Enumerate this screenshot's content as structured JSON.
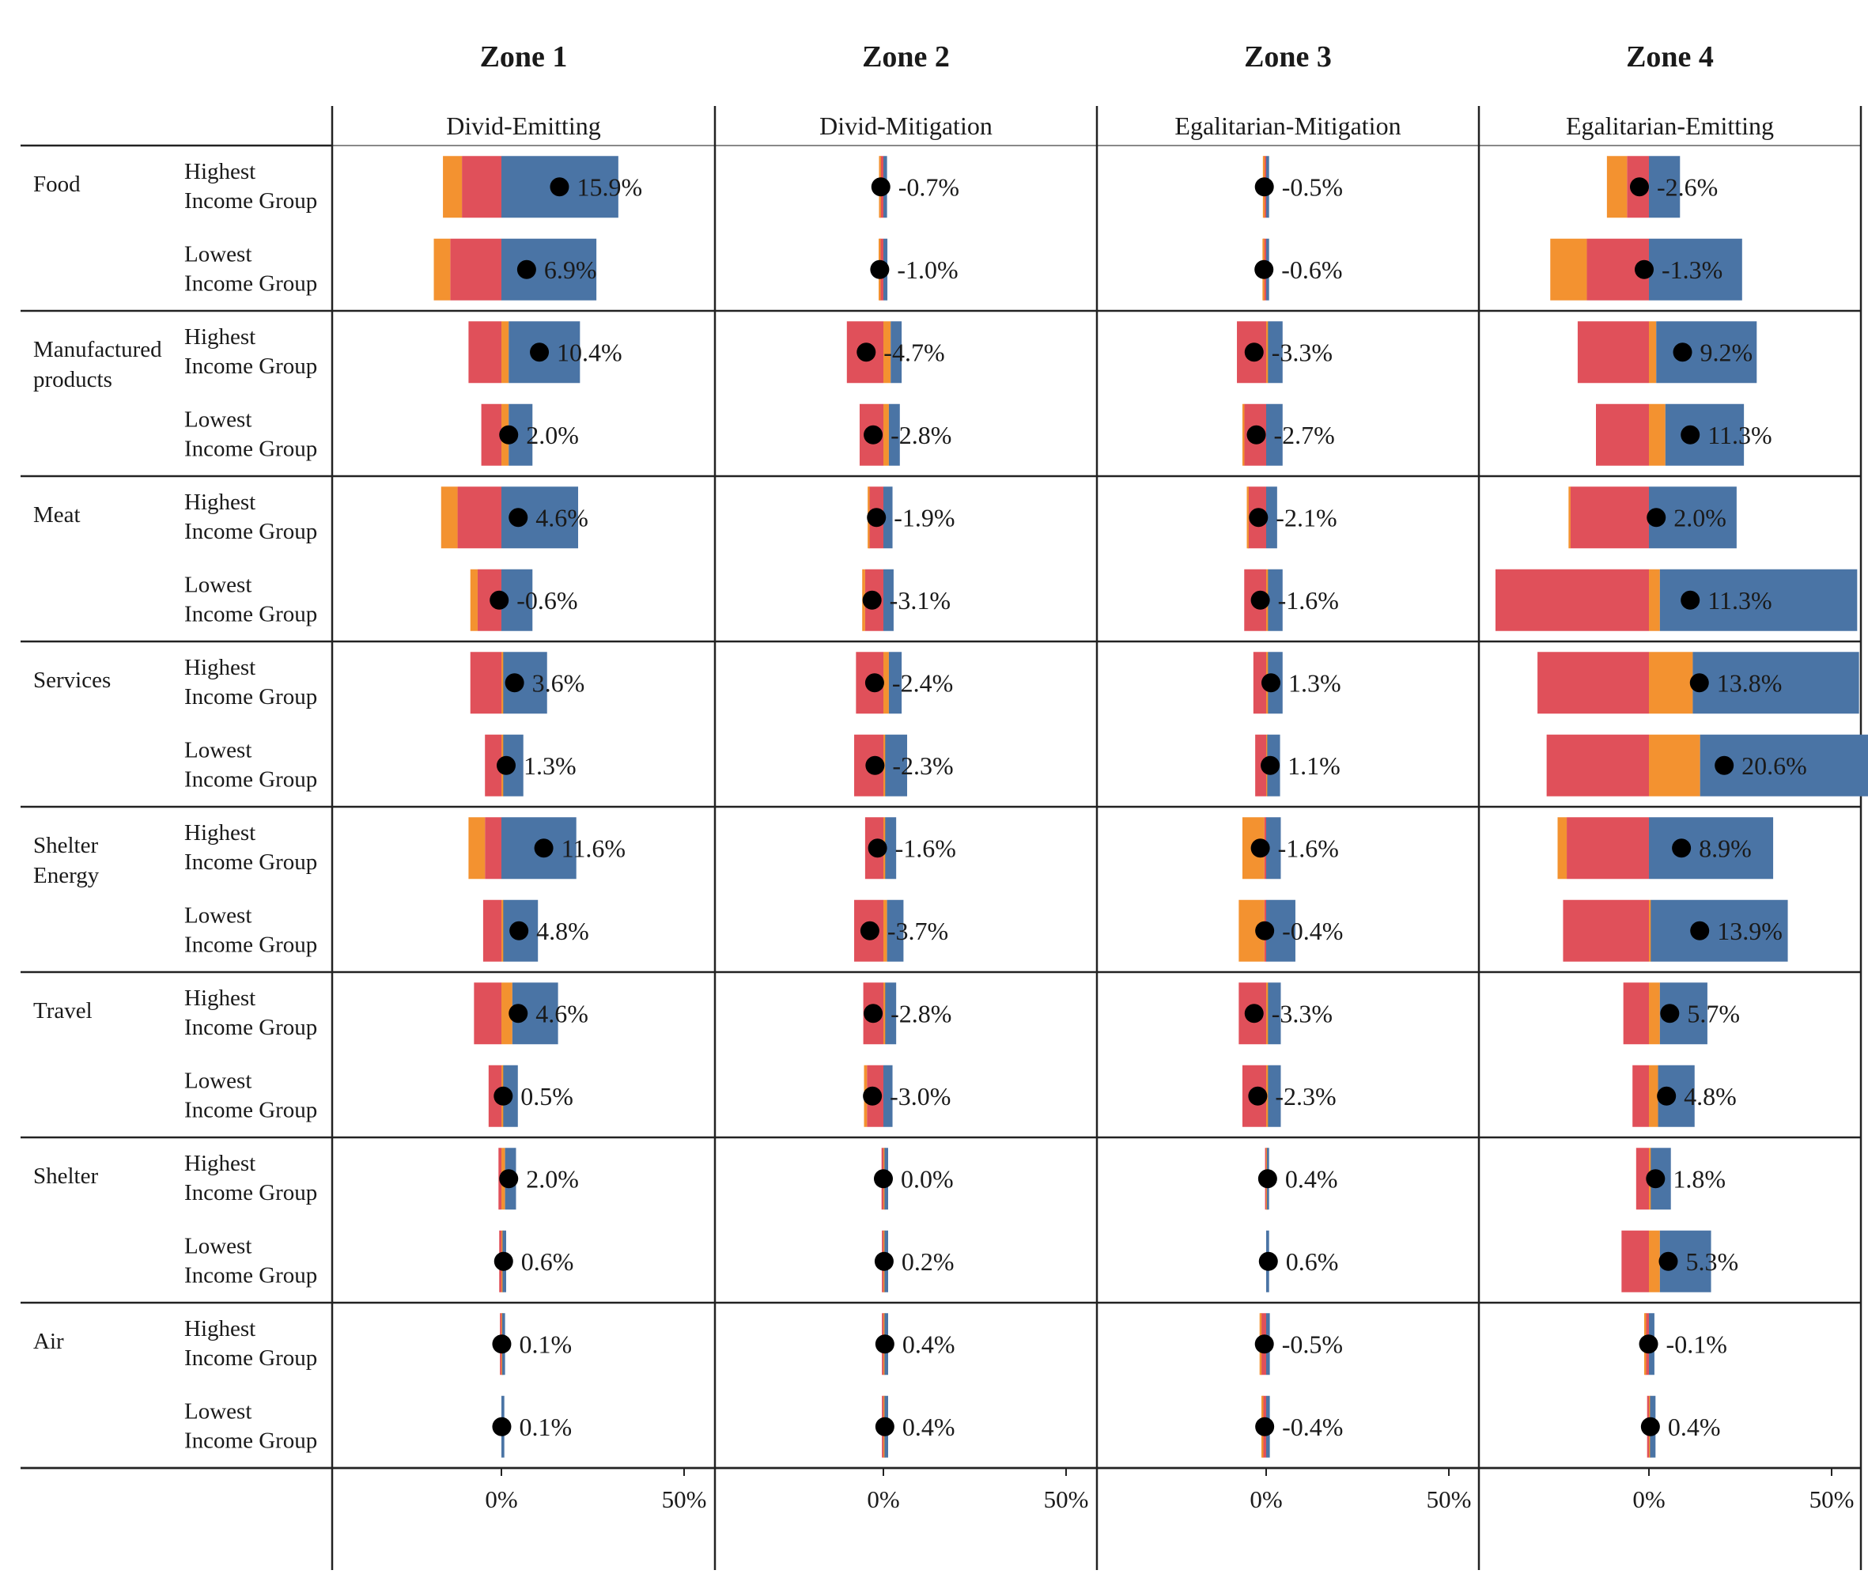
{
  "chart_data": {
    "type": "bar",
    "subtype": "stacked-diverging-bar-grid",
    "zones": [
      {
        "title": "Zone 1",
        "scenario": "Divid-Emitting"
      },
      {
        "title": "Zone 2",
        "scenario": "Divid-Mitigation"
      },
      {
        "title": "Zone 3",
        "scenario": "Egalitarian-Mitigation"
      },
      {
        "title": "Zone 4",
        "scenario": "Egalitarian-Emitting"
      }
    ],
    "categories": [
      {
        "name": [
          "Food"
        ]
      },
      {
        "name": [
          "Manufactured",
          "products"
        ]
      },
      {
        "name": [
          "Meat"
        ]
      },
      {
        "name": [
          "Services"
        ]
      },
      {
        "name": [
          "Shelter",
          "Energy"
        ]
      },
      {
        "name": [
          "Travel"
        ]
      },
      {
        "name": [
          "Shelter"
        ]
      },
      {
        "name": [
          "Air"
        ]
      }
    ],
    "groups": [
      {
        "name": [
          "Highest",
          "Income Group"
        ]
      },
      {
        "name": [
          "Lowest",
          "Income Group"
        ]
      }
    ],
    "ticks": [
      {
        "value": 0,
        "label": "0%"
      },
      {
        "value": 50,
        "label": "50%"
      }
    ],
    "xlim": [
      -46,
      59
    ],
    "colors": {
      "red": "#e0505a",
      "orange": "#f39230",
      "blue": "#4a74a5",
      "dot": "#000000"
    },
    "rows": [
      {
        "cells": [
          {
            "label": "15.9%",
            "net": 15.9,
            "red": -10.8,
            "orange": -5.2,
            "blue": 32.0
          },
          {
            "label": "-0.7%",
            "net": -0.7,
            "red": -1.0,
            "orange": -0.2,
            "blue": 1.0
          },
          {
            "label": "-0.5%",
            "net": -0.5,
            "red": -0.7,
            "orange": -0.2,
            "blue": 0.8
          },
          {
            "label": "-2.6%",
            "net": -2.6,
            "red": -6.0,
            "orange": -5.5,
            "blue": 8.5
          }
        ]
      },
      {
        "cells": [
          {
            "label": "6.9%",
            "net": 6.9,
            "red": -14.0,
            "orange": -4.5,
            "blue": 26.0
          },
          {
            "label": "-1.0%",
            "net": -1.0,
            "red": -1.0,
            "orange": -0.3,
            "blue": 1.1
          },
          {
            "label": "-0.6%",
            "net": -0.6,
            "red": -0.8,
            "orange": -0.2,
            "blue": 0.8
          },
          {
            "label": "-1.3%",
            "net": -1.3,
            "red": -17.0,
            "orange": -10.0,
            "blue": 25.5
          }
        ]
      },
      {
        "cells": [
          {
            "label": "10.4%",
            "net": 10.4,
            "red": -9.0,
            "orange": 2.0,
            "blue": 19.5
          },
          {
            "label": "-4.7%",
            "net": -4.7,
            "red": -10.0,
            "orange": 2.0,
            "blue": 3.0
          },
          {
            "label": "-3.3%",
            "net": -3.3,
            "red": -8.0,
            "orange": 0.5,
            "blue": 4.0
          },
          {
            "label": "9.2%",
            "net": 9.2,
            "red": -19.5,
            "orange": 2.0,
            "blue": 27.5
          }
        ]
      },
      {
        "cells": [
          {
            "label": "2.0%",
            "net": 2.0,
            "red": -5.5,
            "orange": 2.0,
            "blue": 6.5
          },
          {
            "label": "-2.8%",
            "net": -2.8,
            "red": -6.5,
            "orange": 1.5,
            "blue": 3.0
          },
          {
            "label": "-2.7%",
            "net": -2.7,
            "red": -6.0,
            "orange": -0.5,
            "blue": 4.5
          },
          {
            "label": "11.3%",
            "net": 11.3,
            "red": -14.5,
            "orange": 4.5,
            "blue": 21.5
          }
        ]
      },
      {
        "cells": [
          {
            "label": "4.6%",
            "net": 4.6,
            "red": -12.0,
            "orange": -4.5,
            "blue": 21.0
          },
          {
            "label": "-1.9%",
            "net": -1.9,
            "red": -4.0,
            "orange": -0.3,
            "blue": 2.5
          },
          {
            "label": "-2.1%",
            "net": -2.1,
            "red": -5.0,
            "orange": -0.3,
            "blue": 3.0
          },
          {
            "label": "2.0%",
            "net": 2.0,
            "red": -21.5,
            "orange": -0.5,
            "blue": 24.0
          }
        ]
      },
      {
        "cells": [
          {
            "label": "-0.6%",
            "net": -0.6,
            "red": -6.5,
            "orange": -2.0,
            "blue": 8.5
          },
          {
            "label": "-3.1%",
            "net": -3.1,
            "red": -5.0,
            "orange": -0.8,
            "blue": 2.8
          },
          {
            "label": "-1.6%",
            "net": -1.6,
            "red": -6.0,
            "orange": 0.5,
            "blue": 4.0
          },
          {
            "label": "11.3%",
            "net": 11.3,
            "red": -42.0,
            "orange": 3.0,
            "blue": 54.0
          }
        ]
      },
      {
        "cells": [
          {
            "label": "3.6%",
            "net": 3.6,
            "red": -8.5,
            "orange": 0.5,
            "blue": 12.0
          },
          {
            "label": "-2.4%",
            "net": -2.4,
            "red": -7.5,
            "orange": 1.5,
            "blue": 3.5
          },
          {
            "label": "1.3%",
            "net": 1.3,
            "red": -3.5,
            "orange": 0.5,
            "blue": 4.0
          },
          {
            "label": "13.8%",
            "net": 13.8,
            "red": -30.5,
            "orange": 12.0,
            "blue": 45.5
          }
        ]
      },
      {
        "cells": [
          {
            "label": "1.3%",
            "net": 1.3,
            "red": -4.5,
            "orange": 0.5,
            "blue": 5.5
          },
          {
            "label": "-2.3%",
            "net": -2.3,
            "red": -8.0,
            "orange": 0.5,
            "blue": 6.0
          },
          {
            "label": "1.1%",
            "net": 1.1,
            "red": -3.0,
            "orange": 0.3,
            "blue": 3.5
          },
          {
            "label": "20.6%",
            "net": 20.6,
            "red": -28.0,
            "orange": 14.0,
            "blue": 49.5
          }
        ]
      },
      {
        "cells": [
          {
            "label": "11.6%",
            "net": 11.6,
            "red": -4.5,
            "orange": -4.5,
            "blue": 20.5
          },
          {
            "label": "-1.6%",
            "net": -1.6,
            "red": -5.0,
            "orange": 0.5,
            "blue": 3.0
          },
          {
            "label": "-1.6%",
            "net": -1.6,
            "red": -0.5,
            "orange": -6.0,
            "blue": 4.0
          },
          {
            "label": "8.9%",
            "net": 8.9,
            "red": -22.5,
            "orange": -2.5,
            "blue": 34.0
          }
        ]
      },
      {
        "cells": [
          {
            "label": "4.8%",
            "net": 4.8,
            "red": -5.0,
            "orange": 0.5,
            "blue": 9.5
          },
          {
            "label": "-3.7%",
            "net": -3.7,
            "red": -8.0,
            "orange": 1.0,
            "blue": 4.5
          },
          {
            "label": "-0.4%",
            "net": -0.4,
            "red": -0.5,
            "orange": -7.0,
            "blue": 8.0
          },
          {
            "label": "13.9%",
            "net": 13.9,
            "red": -23.5,
            "orange": 0.5,
            "blue": 37.5
          }
        ]
      },
      {
        "cells": [
          {
            "label": "4.6%",
            "net": 4.6,
            "red": -7.5,
            "orange": 3.0,
            "blue": 12.5
          },
          {
            "label": "-2.8%",
            "net": -2.8,
            "red": -5.5,
            "orange": 0.5,
            "blue": 3.0
          },
          {
            "label": "-3.3%",
            "net": -3.3,
            "red": -7.5,
            "orange": 0.5,
            "blue": 3.5
          },
          {
            "label": "5.7%",
            "net": 5.7,
            "red": -7.0,
            "orange": 3.0,
            "blue": 13.0
          }
        ]
      },
      {
        "cells": [
          {
            "label": "0.5%",
            "net": 0.5,
            "red": -3.5,
            "orange": 0.5,
            "blue": 4.0
          },
          {
            "label": "-3.0%",
            "net": -3.0,
            "red": -4.5,
            "orange": -0.8,
            "blue": 2.5
          },
          {
            "label": "-2.3%",
            "net": -2.3,
            "red": -6.5,
            "orange": 0.5,
            "blue": 3.5
          },
          {
            "label": "4.8%",
            "net": 4.8,
            "red": -4.5,
            "orange": 2.5,
            "blue": 10.0
          }
        ]
      },
      {
        "cells": [
          {
            "label": "2.0%",
            "net": 2.0,
            "red": -0.8,
            "orange": 1.0,
            "blue": 3.0
          },
          {
            "label": "0.0%",
            "net": 0.0,
            "red": -0.5,
            "orange": 0.3,
            "blue": 1.0
          },
          {
            "label": "0.4%",
            "net": 0.4,
            "red": -0.3,
            "orange": 0.2,
            "blue": 0.6
          },
          {
            "label": "1.8%",
            "net": 1.8,
            "red": -3.5,
            "orange": 0.5,
            "blue": 5.5
          }
        ]
      },
      {
        "cells": [
          {
            "label": "0.6%",
            "net": 0.6,
            "red": -0.6,
            "orange": 0.3,
            "blue": 1.0
          },
          {
            "label": "0.2%",
            "net": 0.2,
            "red": -0.4,
            "orange": 0.3,
            "blue": 1.0
          },
          {
            "label": "0.6%",
            "net": 0.6,
            "red": 0.0,
            "orange": 0.0,
            "blue": 0.8
          },
          {
            "label": "5.3%",
            "net": 5.3,
            "red": -7.5,
            "orange": 3.0,
            "blue": 14.0
          }
        ]
      },
      {
        "cells": [
          {
            "label": "0.1%",
            "net": 0.1,
            "red": -0.4,
            "orange": 0.2,
            "blue": 0.8
          },
          {
            "label": "0.4%",
            "net": 0.4,
            "red": -0.4,
            "orange": 0.3,
            "blue": 1.0
          },
          {
            "label": "-0.5%",
            "net": -0.5,
            "red": -1.5,
            "orange": -0.3,
            "blue": 1.0
          },
          {
            "label": "-0.1%",
            "net": -0.1,
            "red": -1.0,
            "orange": -0.3,
            "blue": 1.5
          }
        ]
      },
      {
        "cells": [
          {
            "label": "0.1%",
            "net": 0.1,
            "red": 0.0,
            "orange": 0.0,
            "blue": 0.8
          },
          {
            "label": "0.4%",
            "net": 0.4,
            "red": -0.4,
            "orange": 0.3,
            "blue": 1.0
          },
          {
            "label": "-0.4%",
            "net": -0.4,
            "red": -1.0,
            "orange": -0.3,
            "blue": 1.0
          },
          {
            "label": "0.4%",
            "net": 0.4,
            "red": -0.5,
            "orange": 0.3,
            "blue": 1.5
          }
        ]
      }
    ]
  }
}
